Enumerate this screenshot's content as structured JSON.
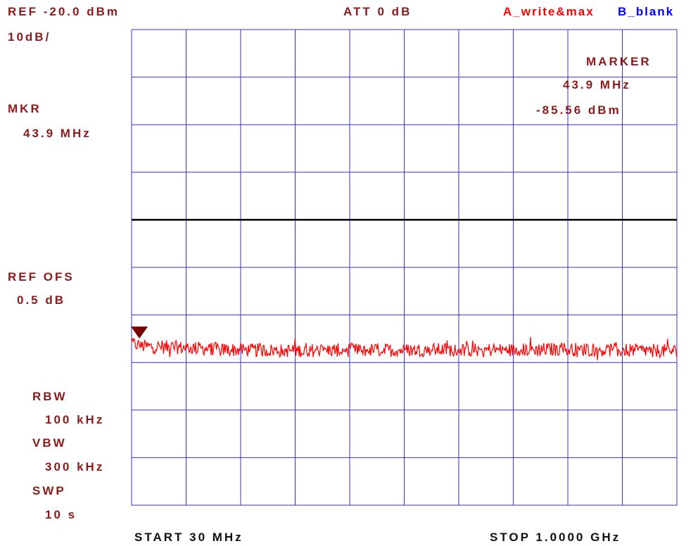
{
  "header": {
    "ref_level": "REF -20.0 dBm",
    "scale": "10dB/",
    "attenuation": "ATT 0 dB",
    "trace_a_mode": "A_write&max",
    "trace_b_mode": "B_blank"
  },
  "marker_side": {
    "mkr_label": "MKR",
    "mkr_freq": "43.9 MHz",
    "ref_ofs_label": "REF OFS",
    "ref_ofs_value": "0.5 dB"
  },
  "marker_readout": {
    "title": "MARKER",
    "freq": "43.9 MHz",
    "level": "-85.56 dBm"
  },
  "settings": {
    "rbw_label": "RBW",
    "rbw_value": "100 kHz",
    "vbw_label": "VBW",
    "vbw_value": "300 kHz",
    "swp_label": "SWP",
    "swp_value": "10 s"
  },
  "footer": {
    "start": "START 30 MHz",
    "stop": "STOP 1.0000 GHz"
  },
  "colors": {
    "grid": "#3333cc",
    "trace": "#ff0000",
    "text": "#8b1a1a",
    "trace_b_text": "#0000ff",
    "marker": "#7a0000",
    "display_line": "#000000"
  },
  "chart_data": {
    "type": "line",
    "title": "",
    "xlabel": "",
    "ylabel": "",
    "x_unit": "MHz",
    "y_unit": "dBm",
    "xlim": [
      30,
      1000
    ],
    "ylim": [
      -120,
      -20
    ],
    "grid": true,
    "x_divisions": 10,
    "y_divisions": 10,
    "display_line_dbm": -60,
    "series": [
      {
        "name": "A",
        "noise_floor_dbm": [
          [
            30,
            -86.0
          ],
          [
            50,
            -86.6
          ],
          [
            100,
            -86.8
          ],
          [
            150,
            -87.0
          ],
          [
            200,
            -87.3
          ],
          [
            300,
            -87.5
          ],
          [
            400,
            -87.4
          ],
          [
            500,
            -87.4
          ],
          [
            600,
            -87.3
          ],
          [
            700,
            -87.4
          ],
          [
            800,
            -87.2
          ],
          [
            900,
            -87.4
          ],
          [
            1000,
            -87.6
          ]
        ],
        "noise_ripple_db": 1.8
      }
    ],
    "marker": {
      "x_mhz": 43.9,
      "y_dbm": -85.56
    }
  }
}
